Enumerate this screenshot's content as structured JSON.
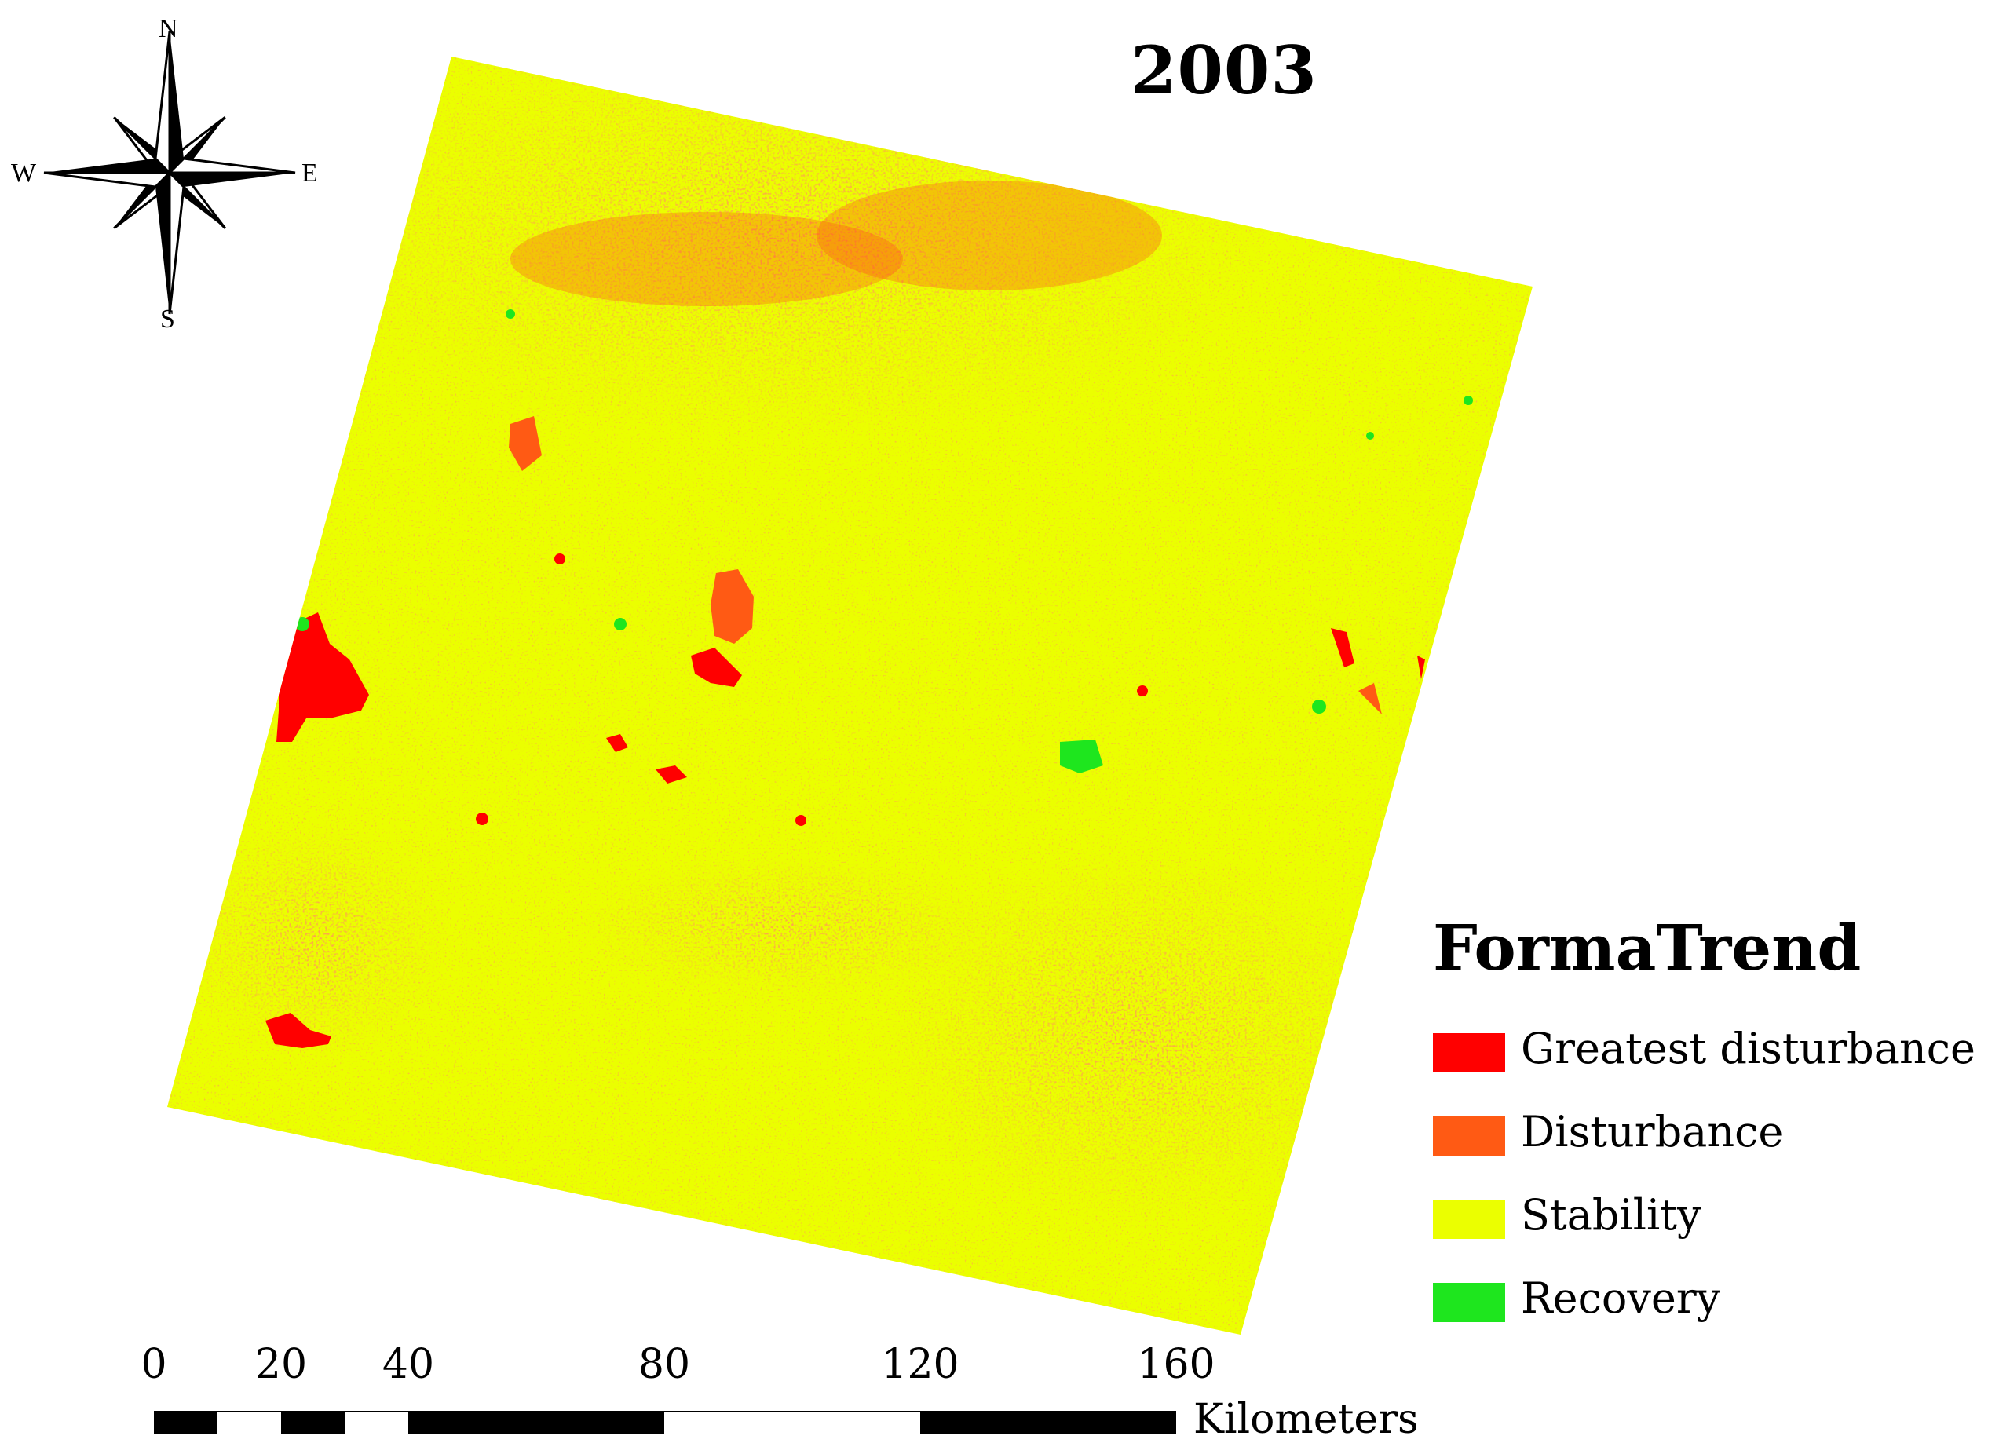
{
  "title": "2003",
  "compass": {
    "north": "N",
    "south": "S",
    "east": "E",
    "west": "W"
  },
  "legend": {
    "title": "FormaTrend",
    "items": [
      {
        "label": "Greatest disturbance",
        "color": "#ff0000"
      },
      {
        "label": "Disturbance",
        "color": "#ff5a14"
      },
      {
        "label": "Stability",
        "color": "#ebff00"
      },
      {
        "label": "Recovery",
        "color": "#1ee61e"
      }
    ]
  },
  "scale_bar": {
    "unit": "Kilometers",
    "ticks": [
      "0",
      "20",
      "40",
      "80",
      "120",
      "160"
    ]
  }
}
